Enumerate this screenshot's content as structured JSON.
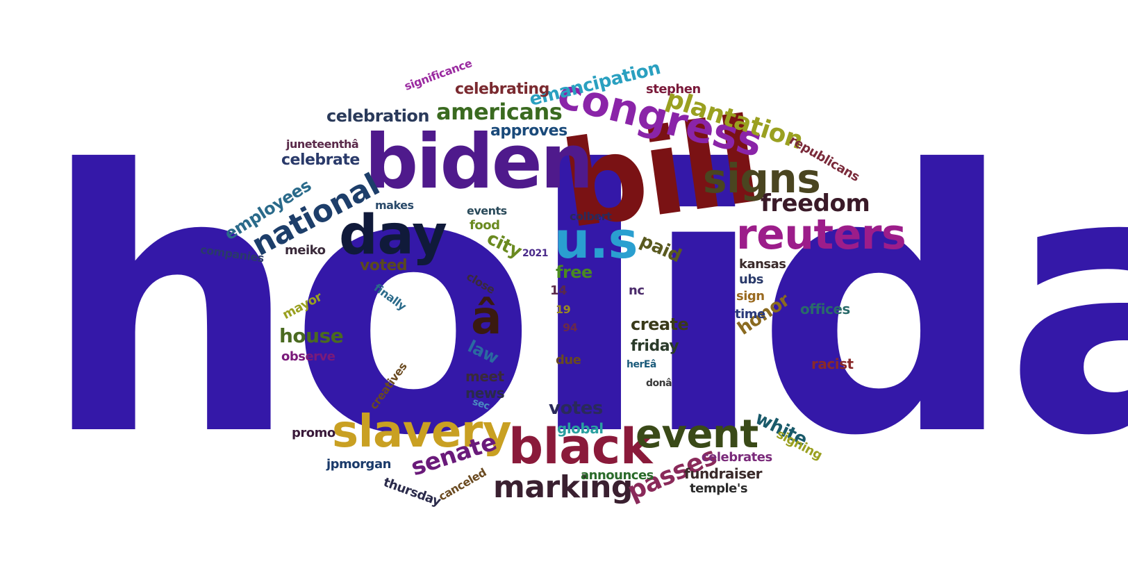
{
  "cloud": {
    "words": [
      {
        "text": "holiday",
        "color": "#3418a8"
      },
      {
        "text": "bill",
        "color": "#7a1214"
      },
      {
        "text": "biden",
        "color": "#4f1a8c"
      },
      {
        "text": "day",
        "color": "#101a3a"
      },
      {
        "text": "congress",
        "color": "#8a24a8"
      },
      {
        "text": "u.s",
        "color": "#2a9fd0"
      },
      {
        "text": "reuters",
        "color": "#9c1d8a"
      },
      {
        "text": "signs",
        "color": "#4a4520"
      },
      {
        "text": "plantation",
        "color": "#9aa020"
      },
      {
        "text": "national",
        "color": "#1d3e6a"
      },
      {
        "text": "slavery",
        "color": "#c9a022"
      },
      {
        "text": "black",
        "color": "#8a1a3a"
      },
      {
        "text": "event",
        "color": "#3a4a18"
      },
      {
        "text": "marking",
        "color": "#3a2030"
      },
      {
        "text": "freedom",
        "color": "#3a1a28"
      },
      {
        "text": "â",
        "color": "#3a1a10"
      },
      {
        "text": "americans",
        "color": "#3a6a20"
      },
      {
        "text": "emancipation",
        "color": "#2aa0c0"
      },
      {
        "text": "celebrating",
        "color": "#7a2a30"
      },
      {
        "text": "celebration",
        "color": "#2a3a5a"
      },
      {
        "text": "approves",
        "color": "#1a4a7a"
      },
      {
        "text": "celebrate",
        "color": "#2a3a6a"
      },
      {
        "text": "employees",
        "color": "#2a6a8a"
      },
      {
        "text": "senate",
        "color": "#6a1a7a"
      },
      {
        "text": "passes",
        "color": "#8a2a5a"
      },
      {
        "text": "house",
        "color": "#4a6a20"
      },
      {
        "text": "city",
        "color": "#6a8a20"
      },
      {
        "text": "paid",
        "color": "#5a5a20"
      },
      {
        "text": "honor",
        "color": "#8a6a20"
      },
      {
        "text": "votes",
        "color": "#2a2a5a"
      },
      {
        "text": "white",
        "color": "#1a5a6a"
      },
      {
        "text": "create",
        "color": "#3a3a1a"
      },
      {
        "text": "friday",
        "color": "#2a3a2a"
      },
      {
        "text": "free",
        "color": "#4a8a20"
      },
      {
        "text": "voted",
        "color": "#5a4a20"
      },
      {
        "text": "mayor",
        "color": "#9aa020"
      },
      {
        "text": "observe",
        "color": "#7a1a7a"
      },
      {
        "text": "law",
        "color": "#2a6aa0"
      },
      {
        "text": "meet",
        "color": "#3a2a3a"
      },
      {
        "text": "news",
        "color": "#2a2a4a"
      },
      {
        "text": "global",
        "color": "#2aa0a0"
      },
      {
        "text": "announces",
        "color": "#2a6a2a"
      },
      {
        "text": "fundraiser",
        "color": "#3a2a2a"
      },
      {
        "text": "celebrates",
        "color": "#7a2a7a"
      },
      {
        "text": "temple's",
        "color": "#2a2a2a"
      },
      {
        "text": "signing",
        "color": "#9aa020"
      },
      {
        "text": "racist",
        "color": "#8a2a2a"
      },
      {
        "text": "offices",
        "color": "#2a6a6a"
      },
      {
        "text": "time",
        "color": "#2a3a7a"
      },
      {
        "text": "sign",
        "color": "#9a6a20"
      },
      {
        "text": "ubs",
        "color": "#2a3a6a"
      },
      {
        "text": "kansas",
        "color": "#3a2a2a"
      },
      {
        "text": "republicans",
        "color": "#7a2a3a"
      },
      {
        "text": "stephen",
        "color": "#7a1a3a"
      },
      {
        "text": "colbert",
        "color": "#2a2a5a"
      },
      {
        "text": "events",
        "color": "#2a4a5a"
      },
      {
        "text": "food",
        "color": "#6a8a20"
      },
      {
        "text": "makes",
        "color": "#2a4a6a"
      },
      {
        "text": "companies",
        "color": "#2a3a6a"
      },
      {
        "text": "meiko",
        "color": "#3a2a3a"
      },
      {
        "text": "finally",
        "color": "#2a6a8a"
      },
      {
        "text": "juneteenthâ",
        "color": "#5a2a4a"
      },
      {
        "text": "promo",
        "color": "#3a1a3a"
      },
      {
        "text": "jpmorgan",
        "color": "#1a3a6a"
      },
      {
        "text": "thursday",
        "color": "#2a2a4a"
      },
      {
        "text": "canceled",
        "color": "#6a4a20"
      },
      {
        "text": "creatives",
        "color": "#6a4a20"
      },
      {
        "text": "significance",
        "color": "#9a2aa0"
      },
      {
        "text": "herEâ",
        "color": "#1a5a7a"
      },
      {
        "text": "donâ",
        "color": "#3a3a3a"
      },
      {
        "text": "nc",
        "color": "#4a2a6a"
      },
      {
        "text": "close",
        "color": "#3a2a3a"
      },
      {
        "text": "due",
        "color": "#6a4a20"
      },
      {
        "text": "sec",
        "color": "#4a8ac0"
      },
      {
        "text": "2021",
        "color": "#4a2a8a"
      },
      {
        "text": "14",
        "color": "#5a2a4a"
      },
      {
        "text": "19",
        "color": "#9a8a20"
      },
      {
        "text": "94",
        "color": "#6a2a4a"
      }
    ]
  }
}
